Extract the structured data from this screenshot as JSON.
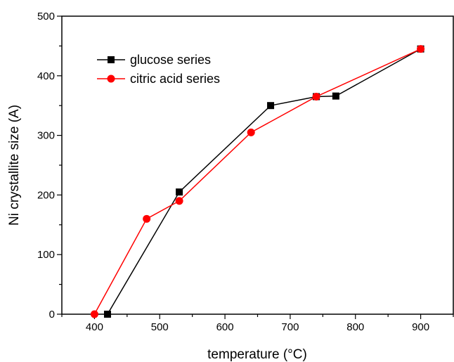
{
  "chart_data": {
    "type": "line",
    "title": "",
    "xlabel": "temperature (°C)",
    "ylabel": "Ni crystallite size (A)",
    "xlim": [
      350,
      950
    ],
    "ylim": [
      0,
      500
    ],
    "x_ticks": [
      400,
      500,
      600,
      700,
      800,
      900
    ],
    "y_ticks": [
      0,
      100,
      200,
      300,
      400,
      500
    ],
    "x_tick_labels": [
      "400",
      "500",
      "600",
      "700",
      "800",
      "900"
    ],
    "y_tick_labels": [
      "0",
      "100",
      "200",
      "300",
      "400",
      "500"
    ],
    "grid": false,
    "legend_position": "top-left",
    "series": [
      {
        "name": "glucose series",
        "color": "#000000",
        "marker": "square",
        "x": [
          420,
          530,
          670,
          740,
          770,
          900
        ],
        "y": [
          0,
          205,
          350,
          365,
          366,
          445
        ]
      },
      {
        "name": "citric acid series",
        "color": "#ff0000",
        "marker": "circle",
        "x": [
          400,
          480,
          530,
          640,
          740,
          900
        ],
        "y": [
          0,
          160,
          190,
          305,
          365,
          445
        ]
      }
    ]
  }
}
